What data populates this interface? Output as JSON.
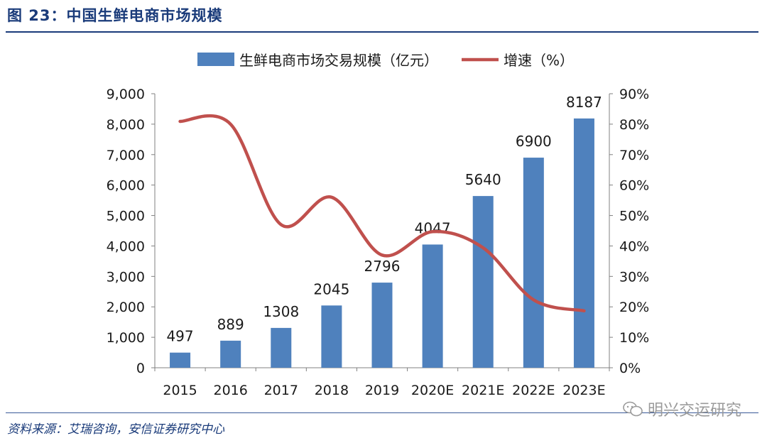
{
  "figure_title": "图 23：中国生鲜电商市场规模",
  "source": "资料来源：艾瑞咨询，安信证券研究中心",
  "watermark": "明兴交运研究",
  "colors": {
    "bar": "#4f81bd",
    "line": "#c0504d",
    "accent": "#1a3b7a"
  },
  "chart_data": {
    "type": "bar+line",
    "categories": [
      "2015",
      "2016",
      "2017",
      "2018",
      "2019",
      "2020E",
      "2021E",
      "2022E",
      "2023E"
    ],
    "series": [
      {
        "name": "生鲜电商市场交易规模（亿元）",
        "type": "bar",
        "axis": "left",
        "values": [
          497,
          889,
          1308,
          2045,
          2796,
          4047,
          5640,
          6900,
          8187
        ]
      },
      {
        "name": "增速（%）",
        "type": "line",
        "axis": "right",
        "values": [
          80.9,
          80,
          47,
          56,
          37,
          44.7,
          39.4,
          22.3,
          18.7
        ]
      }
    ],
    "data_labels": [
      "497",
      "889",
      "1308",
      "2045",
      "2796",
      "4047",
      "5640",
      "6900",
      "8187"
    ],
    "yleft": {
      "ylim": [
        0,
        9000
      ],
      "ticks": [
        "0",
        "1,000",
        "2,000",
        "3,000",
        "4,000",
        "5,000",
        "6,000",
        "7,000",
        "8,000",
        "9,000"
      ]
    },
    "yright": {
      "ylim": [
        0,
        90
      ],
      "ticks": [
        "0%",
        "10%",
        "20%",
        "30%",
        "40%",
        "50%",
        "60%",
        "70%",
        "80%",
        "90%"
      ]
    },
    "legend_position": "top-center",
    "grid": false
  }
}
